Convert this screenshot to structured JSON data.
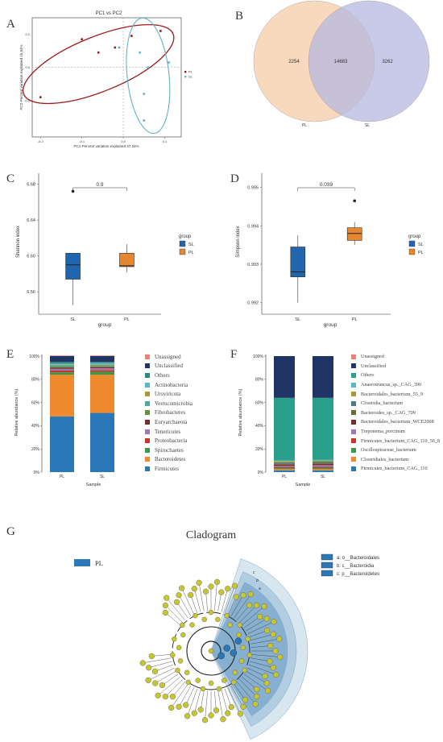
{
  "panel_labels": [
    "A",
    "B",
    "C",
    "D",
    "E",
    "F",
    "G"
  ],
  "colors": {
    "SL": "#2166ac",
    "PL": "#e6862e",
    "ellipse_PL": "#9b1c1c",
    "ellipse_SL": "#5fb3c8"
  },
  "chart_data": [
    {
      "id": "A",
      "type": "scatter",
      "title": "PC1 vs PC2",
      "xlabel": "PC1-Percent variation explained 37.34%",
      "ylabel": "PC2-Percent variation explained 15.64%",
      "xlim": [
        -0.22,
        0.14
      ],
      "ylim": [
        -0.42,
        0.3
      ],
      "xticks": [
        "-0.2",
        "-0.1",
        "0.0",
        "0.1"
      ],
      "yticks": [
        "0.2",
        "0.0",
        "-0.2"
      ],
      "legend": [
        "PL",
        "SL"
      ],
      "series": [
        {
          "name": "PL",
          "points": [
            [
              -0.2,
              -0.18
            ],
            [
              -0.1,
              0.17
            ],
            [
              -0.06,
              0.09
            ],
            [
              -0.02,
              0.12
            ],
            [
              0.02,
              0.19
            ],
            [
              0.09,
              0.22
            ]
          ]
        },
        {
          "name": "SL",
          "points": [
            [
              -0.01,
              0.12
            ],
            [
              0.04,
              0.09
            ],
            [
              0.06,
              0.0
            ],
            [
              0.11,
              0.03
            ],
            [
              0.05,
              -0.16
            ],
            [
              0.05,
              -0.32
            ]
          ]
        }
      ]
    },
    {
      "id": "B",
      "type": "venn",
      "sets": [
        "PL",
        "SL"
      ],
      "values": {
        "PL_only": "2254",
        "shared": "14683",
        "SL_only": "3262"
      }
    },
    {
      "id": "C",
      "type": "box",
      "ylabel": "Shannon index",
      "xlabel": "group",
      "categories": [
        "SL",
        "PL"
      ],
      "yticks": [
        "6.68",
        "6.64",
        "6.60",
        "6.56"
      ],
      "ylim": [
        6.535,
        6.685
      ],
      "pvalue": "0.9",
      "legend_title": "group",
      "legend": [
        "SL",
        "PL"
      ],
      "boxes": [
        {
          "name": "SL",
          "whisker_low": 6.545,
          "q1": 6.574,
          "median": 6.59,
          "q3": 6.603,
          "whisker_high": 6.603,
          "outliers": [
            6.672
          ]
        },
        {
          "name": "PL",
          "whisker_low": 6.582,
          "q1": 6.588,
          "median": 6.589,
          "q3": 6.603,
          "whisker_high": 6.613,
          "outliers": []
        }
      ]
    },
    {
      "id": "D",
      "type": "box",
      "ylabel": "Simpson index",
      "xlabel": "group",
      "categories": [
        "SL",
        "PL"
      ],
      "yticks": [
        "0.995",
        "0.994",
        "0.993",
        "0.992"
      ],
      "ylim": [
        0.9917,
        0.9952
      ],
      "pvalue": "0.039",
      "legend_title": "group",
      "legend": [
        "SL",
        "PL"
      ],
      "boxes": [
        {
          "name": "SL",
          "whisker_low": 0.992,
          "q1": 0.99267,
          "median": 0.9928,
          "q3": 0.99345,
          "whisker_high": 0.99375,
          "outliers": []
        },
        {
          "name": "PL",
          "whisker_low": 0.9935,
          "q1": 0.99362,
          "median": 0.9938,
          "q3": 0.99395,
          "whisker_high": 0.9941,
          "outliers": [
            0.99465
          ]
        }
      ]
    },
    {
      "id": "E",
      "type": "stacked_bar",
      "ylabel": "Relative abundance (%)",
      "xlabel": "Sample",
      "yticks": [
        "100%",
        "80%",
        "60%",
        "40%",
        "20%",
        "0%"
      ],
      "categories": [
        "PL",
        "SL"
      ],
      "legend": [
        "Unassigned",
        "Unclassified",
        "Others",
        "Actinobacteria",
        "Uroviricota",
        "Verrucomicrobia",
        "Fibrobacteres",
        "Euryarchaeota",
        "Tenericutes",
        "Proteobacteria",
        "Spirochaetes",
        "Bacteroidetes",
        "Firmicutes"
      ],
      "legend_colors": [
        "#f08070",
        "#1f3464",
        "#2a8a7a",
        "#58b8c8",
        "#a89a3a",
        "#4ea8a0",
        "#6b8c3a",
        "#7a2a2a",
        "#9b7ab8",
        "#c0392b",
        "#3a9a4a",
        "#ef8a2e",
        "#2a78b8"
      ],
      "series": [
        {
          "name": "Firmicutes",
          "values": [
            48,
            51
          ]
        },
        {
          "name": "Bacteroidetes",
          "values": [
            36,
            33
          ]
        },
        {
          "name": "Spirochaetes",
          "values": [
            2,
            2.5
          ]
        },
        {
          "name": "Proteobacteria",
          "values": [
            1.5,
            1.5
          ]
        },
        {
          "name": "Tenericutes",
          "values": [
            1.5,
            1.5
          ]
        },
        {
          "name": "Euryarchaeota",
          "values": [
            1,
            1
          ]
        },
        {
          "name": "Fibrobacteres",
          "values": [
            1,
            1
          ]
        },
        {
          "name": "Verrucomicrobia",
          "values": [
            1,
            1
          ]
        },
        {
          "name": "Uroviricota",
          "values": [
            0.5,
            0.5
          ]
        },
        {
          "name": "Actinobacteria",
          "values": [
            1,
            1
          ]
        },
        {
          "name": "Others",
          "values": [
            1.5,
            1
          ]
        },
        {
          "name": "Unclassified",
          "values": [
            5,
            5
          ]
        },
        {
          "name": "Unassigned",
          "values": [
            0.5,
            0.5
          ]
        }
      ]
    },
    {
      "id": "F",
      "type": "stacked_bar",
      "ylabel": "Relative abundance (%)",
      "xlabel": "Sample",
      "yticks": [
        "100%",
        "80%",
        "60%",
        "40%",
        "20%",
        "0%"
      ],
      "categories": [
        "PL",
        "SL"
      ],
      "legend": [
        "Unassigned",
        "Unclassified",
        "Others",
        "Anaerotruncus_sp._CAG_390",
        "Bacteroidales_bacterium_55_9",
        "Clostridia_bacterium",
        "Bacteroides_sp._CAG_709",
        "Bacteroidales_bacterium_WCE2008",
        "Treponema_porcinum",
        "Firmicutes_bacterium_CAG_110_56_8",
        "Oscillospiraceae_bacterium",
        "Clostridiales_bacterium",
        "Firmicutes_bacterium_CAG_110"
      ],
      "legend_colors": [
        "#f08070",
        "#1f3464",
        "#2aa08a",
        "#58b8c8",
        "#a89a3a",
        "#4e7a8a",
        "#6b6c3a",
        "#7a2a2a",
        "#9b7ab8",
        "#c0392b",
        "#3a9a4a",
        "#ef8a2e",
        "#2a78b8"
      ],
      "series": [
        {
          "name": "Firmicutes_bacterium_CAG_110",
          "values": [
            1.5,
            1.5
          ]
        },
        {
          "name": "Clostridiales_bacterium",
          "values": [
            1,
            1
          ]
        },
        {
          "name": "Oscillospiraceae_bacterium",
          "values": [
            1,
            1
          ]
        },
        {
          "name": "Firmicutes_bacterium_CAG_110_56_8",
          "values": [
            1,
            1
          ]
        },
        {
          "name": "Treponema_porcinum",
          "values": [
            1,
            1.5
          ]
        },
        {
          "name": "Bacteroidales_bacterium_WCE2008",
          "values": [
            1,
            1
          ]
        },
        {
          "name": "Bacteroides_sp._CAG_709",
          "values": [
            1,
            1
          ]
        },
        {
          "name": "Clostridia_bacterium",
          "values": [
            1,
            1
          ]
        },
        {
          "name": "Bacteroidales_bacterium_55_9",
          "values": [
            1,
            1
          ]
        },
        {
          "name": "Anaerotruncus_sp._CAG_390",
          "values": [
            0.5,
            0.5
          ]
        },
        {
          "name": "Others",
          "values": [
            54,
            53.5
          ]
        },
        {
          "name": "Unclassified",
          "values": [
            36,
            36
          ]
        },
        {
          "name": "Unassigned",
          "values": [
            0,
            0
          ]
        }
      ]
    },
    {
      "id": "G",
      "type": "cladogram",
      "title": "Cladogram",
      "group_legend": [
        "PL"
      ],
      "clade_legend": [
        "a: o__Bacteroidales",
        "b: c__Bacteroidia",
        "c: p__Bacteroidetes"
      ],
      "arc_labels": [
        "c",
        "b",
        "a"
      ]
    }
  ]
}
